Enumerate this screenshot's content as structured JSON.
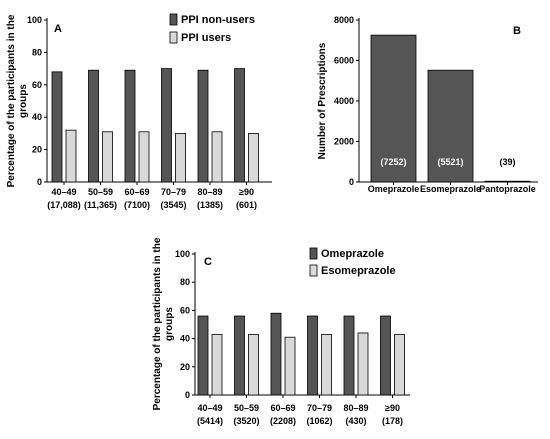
{
  "chart_data": [
    {
      "panel": "A",
      "type": "bar",
      "ylabel_line1": "Percentage of the participants in the",
      "ylabel_line2": "groups",
      "ylim": [
        0,
        100
      ],
      "yticks": [
        "0",
        "20",
        "40",
        "60",
        "80",
        "100"
      ],
      "categories": [
        "40–49",
        "50–59",
        "60–69",
        "70–79",
        "80–89",
        "≥90"
      ],
      "category_counts": [
        "(17,088)",
        "(11,365)",
        "(7100)",
        "(3545)",
        "(1385)",
        "(601)"
      ],
      "legend_position": "top-right",
      "series": [
        {
          "name": "PPI non-users",
          "color": "#555555",
          "values": [
            68,
            69,
            69,
            70,
            69,
            70
          ]
        },
        {
          "name": "PPI users",
          "color": "#d9d9d9",
          "values": [
            32,
            31,
            31,
            30,
            31,
            30
          ]
        }
      ]
    },
    {
      "panel": "B",
      "type": "bar",
      "ylabel": "Number of Prescriptions",
      "ylim": [
        0,
        8000
      ],
      "yticks": [
        "0",
        "2000",
        "4000",
        "6000",
        "8000"
      ],
      "categories": [
        "Omeprazole",
        "Esomeprazole",
        "Pantoprazole"
      ],
      "values": [
        7252,
        5521,
        39
      ],
      "data_labels": [
        "(7252)",
        "(5521)",
        "(39)"
      ],
      "color": "#555555"
    },
    {
      "panel": "C",
      "type": "bar",
      "ylabel_line1": "Percentage of the participants in the",
      "ylabel_line2": "groups",
      "ylim": [
        0,
        100
      ],
      "yticks": [
        "0",
        "20",
        "40",
        "60",
        "80",
        "100"
      ],
      "categories": [
        "40–49",
        "50–59",
        "60–69",
        "70–79",
        "80–89",
        "≥90"
      ],
      "category_counts": [
        "(5414)",
        "(3520)",
        "(2208)",
        "(1062)",
        "(430)",
        "(178)"
      ],
      "legend_position": "top-right",
      "series": [
        {
          "name": "Omeprazole",
          "color": "#555555",
          "values": [
            56,
            56,
            58,
            56,
            56,
            56
          ]
        },
        {
          "name": "Esomeprazole",
          "color": "#d9d9d9",
          "values": [
            43,
            43,
            41,
            43,
            44,
            43
          ]
        }
      ]
    }
  ]
}
